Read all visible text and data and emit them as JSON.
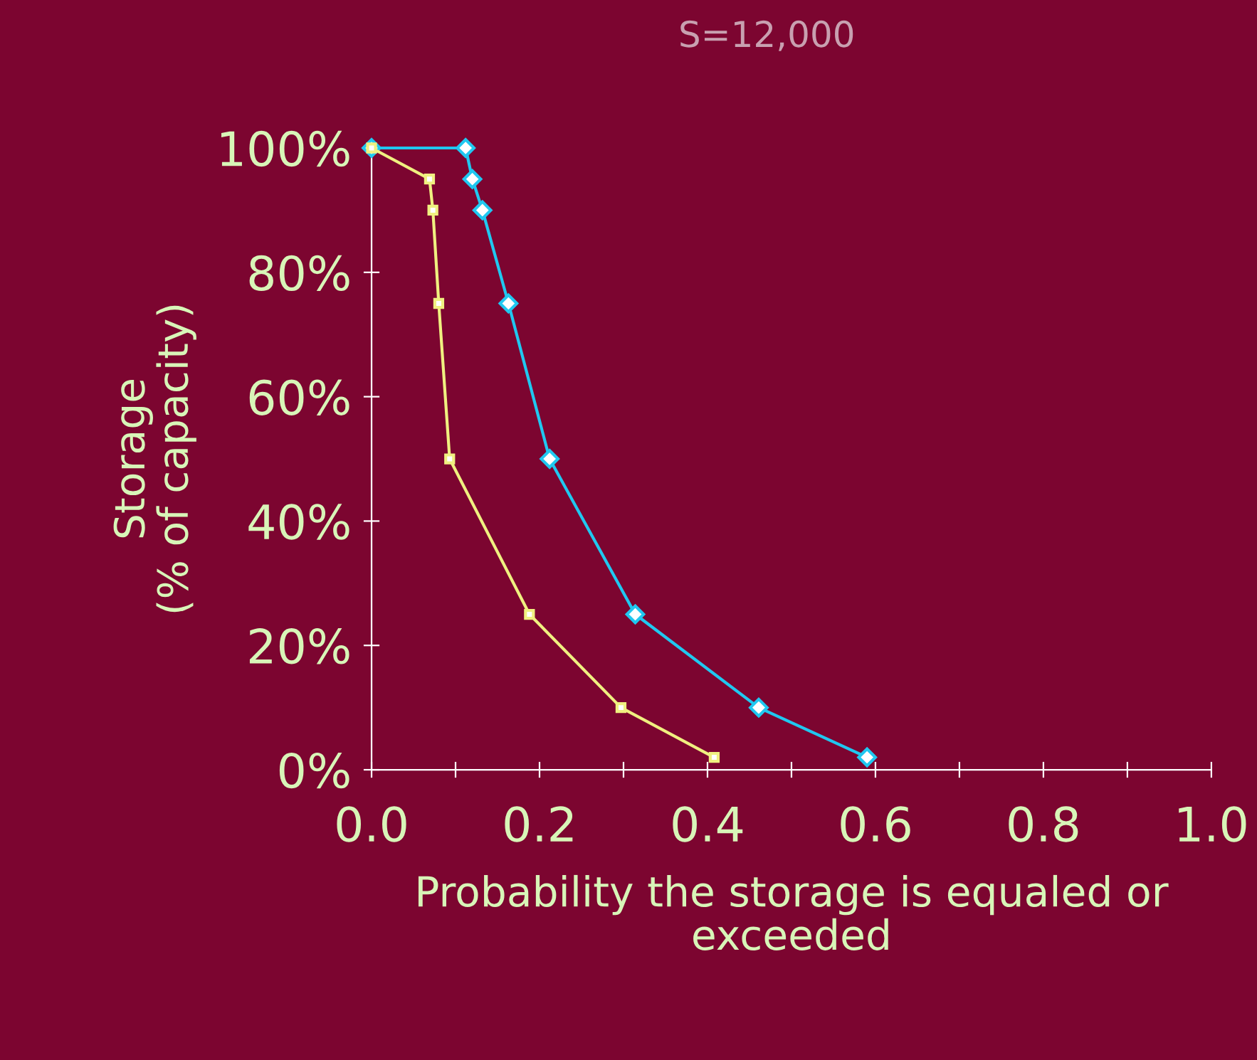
{
  "chart_data": {
    "type": "line",
    "title": "S=12,000",
    "xlabel": "Probability the storage is equaled or\nexceeded",
    "ylabel": "Storage\n(% of capacity)",
    "series": [
      {
        "color": "#20c8f0",
        "marker": "diamond",
        "x": [
          0,
          0.112,
          0.12,
          0.132,
          0.163,
          0.212,
          0.314,
          0.461,
          0.59
        ],
        "values": [
          100,
          100,
          95,
          90,
          75,
          50,
          25,
          10,
          2
        ]
      },
      {
        "color": "#f0f080",
        "marker": "square",
        "x": [
          0,
          0.069,
          0.073,
          0.08,
          0.093,
          0.188,
          0.297,
          0.408
        ],
        "values": [
          100,
          95,
          90,
          75,
          50,
          25,
          10,
          2
        ]
      }
    ],
    "xlim": [
      0,
      1.0
    ],
    "ylim": [
      0,
      100
    ],
    "xticks": [
      {
        "value": 0,
        "label": "0.0"
      },
      {
        "value": 0.1,
        "label": null
      },
      {
        "value": 0.2,
        "label": "0.2"
      },
      {
        "value": 0.3,
        "label": null
      },
      {
        "value": 0.4,
        "label": "0.4"
      },
      {
        "value": 0.5,
        "label": null
      },
      {
        "value": 0.6,
        "label": "0.6"
      },
      {
        "value": 0.7,
        "label": null
      },
      {
        "value": 0.8,
        "label": "0.8"
      },
      {
        "value": 0.9,
        "label": null
      },
      {
        "value": 1.0,
        "label": "1.0"
      }
    ],
    "yticks": [
      {
        "value": 0,
        "label": "0%"
      },
      {
        "value": 20,
        "label": "20%"
      },
      {
        "value": 40,
        "label": "40%"
      },
      {
        "value": 60,
        "label": "60%"
      },
      {
        "value": 80,
        "label": "80%"
      },
      {
        "value": 100,
        "label": "100%"
      }
    ],
    "grid": false,
    "legend": false,
    "line_style": "solid"
  }
}
